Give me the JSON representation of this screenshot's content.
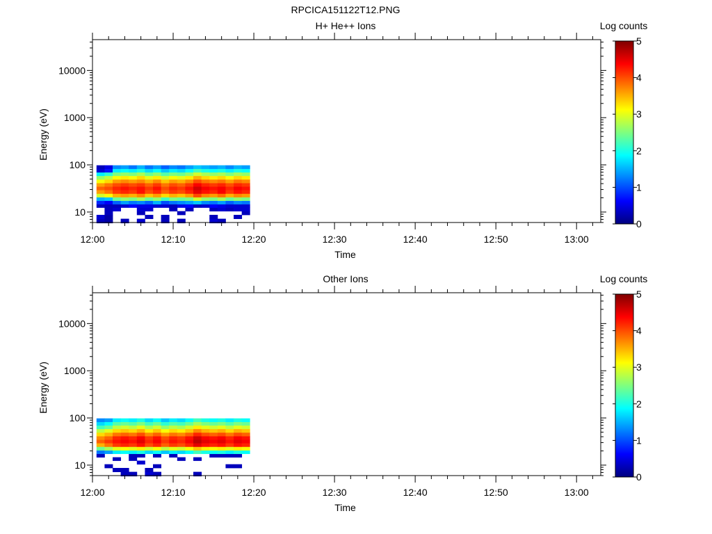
{
  "title": "RPCICA151122T12.PNG",
  "colors": {
    "colormap": [
      "#00007f",
      "#0000ff",
      "#007fff",
      "#00ffff",
      "#7fff7f",
      "#ffff00",
      "#ff7f00",
      "#ff0000",
      "#7f0000"
    ]
  },
  "chart_data": [
    {
      "type": "heatmap",
      "title": "H+ He++ Ions",
      "xlabel": "Time",
      "ylabel": "Energy (eV)",
      "yscale": "log",
      "xlim": [
        "12:00",
        "13:03"
      ],
      "ylim": [
        6,
        45000
      ],
      "x_ticks": [
        "12:00",
        "12:10",
        "12:20",
        "12:30",
        "12:40",
        "12:50",
        "13:00"
      ],
      "y_ticks": [
        "10",
        "100",
        "1000",
        "10000"
      ],
      "colorbar": {
        "label": "Log counts",
        "range": [
          0,
          5
        ],
        "ticks": [
          "0",
          "1",
          "2",
          "3",
          "4",
          "5"
        ]
      },
      "time_bins": [
        "12:01",
        "12:02",
        "12:03",
        "12:04",
        "12:05",
        "12:06",
        "12:07",
        "12:08",
        "12:09",
        "12:10",
        "12:11",
        "12:12",
        "12:13",
        "12:14",
        "12:15",
        "12:16",
        "12:17",
        "12:18",
        "12:19"
      ],
      "energy_bins": [
        6.5,
        8,
        9.5,
        11.5,
        13.5,
        16,
        19,
        22.5,
        27,
        32,
        38,
        45,
        54,
        64,
        76,
        90
      ],
      "values": [
        [
          0.3,
          0.2,
          null,
          0.3,
          null,
          0.4,
          null,
          null,
          0.3,
          null,
          0.3,
          null,
          null,
          null,
          0.4,
          0.3,
          null,
          null,
          null
        ],
        [
          0.4,
          0.2,
          null,
          null,
          null,
          null,
          0.3,
          null,
          0.3,
          null,
          null,
          null,
          null,
          null,
          0.3,
          null,
          null,
          0.3,
          null
        ],
        [
          null,
          0.3,
          null,
          null,
          null,
          0.3,
          null,
          null,
          null,
          null,
          0.3,
          null,
          null,
          null,
          null,
          null,
          null,
          null,
          0.3
        ],
        [
          null,
          0.3,
          0.4,
          null,
          null,
          0.4,
          0.4,
          null,
          null,
          0.3,
          null,
          0.3,
          null,
          null,
          0.3,
          0.4,
          0.3,
          0.4,
          0.4
        ],
        [
          0.3,
          0.3,
          0.3,
          0.4,
          0.6,
          0.5,
          0.5,
          0.4,
          0.4,
          0.3,
          0.5,
          0.6,
          0.3,
          0.4,
          0.6,
          0.5,
          0.4,
          0.4,
          0.4
        ],
        [
          0.8,
          0.6,
          1.1,
          1.4,
          1.2,
          1.3,
          1.1,
          1.5,
          1.0,
          1.2,
          1.3,
          1.4,
          1.6,
          1.3,
          1.2,
          1.4,
          1.1,
          1.3,
          1.2
        ],
        [
          1.5,
          1.6,
          2.4,
          2.6,
          2.5,
          2.7,
          2.4,
          2.6,
          2.2,
          2.5,
          2.4,
          2.5,
          2.9,
          2.6,
          2.5,
          2.7,
          2.4,
          2.6,
          2.5
        ],
        [
          2.9,
          3.1,
          3.5,
          3.6,
          3.5,
          3.7,
          3.4,
          3.6,
          3.3,
          3.5,
          3.4,
          3.6,
          4.0,
          3.7,
          3.6,
          3.8,
          3.5,
          3.7,
          3.6
        ],
        [
          3.6,
          3.8,
          4.1,
          4.2,
          4.1,
          4.3,
          4.0,
          4.2,
          3.9,
          4.1,
          4.0,
          4.2,
          4.5,
          4.3,
          4.2,
          4.4,
          4.1,
          4.3,
          4.2
        ],
        [
          3.9,
          4.0,
          4.2,
          4.3,
          4.2,
          4.3,
          4.1,
          4.3,
          4.0,
          4.2,
          4.1,
          4.3,
          4.6,
          4.4,
          4.3,
          4.4,
          4.2,
          4.4,
          4.3
        ],
        [
          3.6,
          3.8,
          4.0,
          4.1,
          4.0,
          4.1,
          3.9,
          4.1,
          3.8,
          4.0,
          3.9,
          4.1,
          4.4,
          4.2,
          4.1,
          4.2,
          4.0,
          4.2,
          4.1
        ],
        [
          3.1,
          3.3,
          3.6,
          3.7,
          3.6,
          3.7,
          3.5,
          3.7,
          3.4,
          3.6,
          3.5,
          3.7,
          4.0,
          3.8,
          3.7,
          3.8,
          3.6,
          3.8,
          3.7
        ],
        [
          2.6,
          2.8,
          3.1,
          3.2,
          3.1,
          3.3,
          3.0,
          3.2,
          2.9,
          3.1,
          3.0,
          3.2,
          3.5,
          3.3,
          3.2,
          3.3,
          3.1,
          3.3,
          3.2
        ],
        [
          1.8,
          2.1,
          2.5,
          2.6,
          2.5,
          2.7,
          2.4,
          2.6,
          2.3,
          2.5,
          2.4,
          2.6,
          2.9,
          2.7,
          2.6,
          2.7,
          2.5,
          2.7,
          2.6
        ],
        [
          0.4,
          0.7,
          1.8,
          1.9,
          1.8,
          2.0,
          1.7,
          1.9,
          1.6,
          1.8,
          1.7,
          1.9,
          2.2,
          2.0,
          1.9,
          2.0,
          1.8,
          2.0,
          1.9
        ],
        [
          0.3,
          0.5,
          1.3,
          1.4,
          1.2,
          1.5,
          1.2,
          1.4,
          1.1,
          1.3,
          1.2,
          1.4,
          1.6,
          1.5,
          1.4,
          1.5,
          1.3,
          1.5,
          1.4
        ]
      ]
    },
    {
      "type": "heatmap",
      "title": "Other Ions",
      "xlabel": "Time",
      "ylabel": "Energy (eV)",
      "yscale": "log",
      "xlim": [
        "12:00",
        "13:03"
      ],
      "ylim": [
        6,
        45000
      ],
      "x_ticks": [
        "12:00",
        "12:10",
        "12:20",
        "12:30",
        "12:40",
        "12:50",
        "13:00"
      ],
      "y_ticks": [
        "10",
        "100",
        "1000",
        "10000"
      ],
      "colorbar": {
        "label": "Log counts",
        "range": [
          0,
          5
        ],
        "ticks": [
          "0",
          "1",
          "2",
          "3",
          "4",
          "5"
        ]
      },
      "time_bins": [
        "12:01",
        "12:02",
        "12:03",
        "12:04",
        "12:05",
        "12:06",
        "12:07",
        "12:08",
        "12:09",
        "12:10",
        "12:11",
        "12:12",
        "12:13",
        "12:14",
        "12:15",
        "12:16",
        "12:17",
        "12:18",
        "12:19"
      ],
      "energy_bins": [
        6.5,
        8,
        9.5,
        11.5,
        13.5,
        16,
        19,
        22.5,
        27,
        32,
        38,
        45,
        54,
        64,
        76,
        90
      ],
      "values": [
        [
          null,
          null,
          null,
          0.3,
          0.3,
          null,
          0.4,
          0.3,
          null,
          null,
          null,
          null,
          0.3,
          null,
          null,
          null,
          null,
          null,
          null
        ],
        [
          null,
          null,
          0.3,
          0.3,
          null,
          null,
          0.3,
          null,
          null,
          null,
          null,
          null,
          null,
          null,
          null,
          null,
          null,
          null,
          null
        ],
        [
          null,
          0.3,
          null,
          null,
          null,
          null,
          null,
          0.3,
          null,
          null,
          null,
          null,
          null,
          null,
          null,
          null,
          0.3,
          0.3,
          null
        ],
        [
          null,
          null,
          null,
          null,
          null,
          0.4,
          null,
          null,
          null,
          null,
          null,
          null,
          null,
          null,
          null,
          null,
          null,
          null,
          null
        ],
        [
          null,
          null,
          0.3,
          null,
          0.3,
          null,
          null,
          null,
          null,
          null,
          0.3,
          null,
          0.3,
          null,
          null,
          null,
          null,
          null,
          null
        ],
        [
          0.3,
          null,
          null,
          null,
          0.3,
          0.3,
          null,
          0.3,
          null,
          0.3,
          null,
          null,
          null,
          null,
          0.3,
          0.3,
          0.3,
          0.3,
          null
        ],
        [
          1.2,
          1.4,
          1.8,
          1.9,
          1.8,
          2.0,
          1.7,
          1.9,
          1.6,
          1.8,
          1.7,
          1.9,
          2.2,
          2.0,
          1.9,
          2.0,
          1.8,
          2.0,
          1.9
        ],
        [
          2.4,
          2.7,
          3.0,
          3.1,
          3.0,
          3.2,
          2.9,
          3.1,
          2.8,
          3.0,
          2.9,
          3.1,
          3.4,
          3.2,
          3.1,
          3.2,
          3.0,
          3.2,
          3.1
        ],
        [
          3.5,
          3.8,
          4.1,
          4.2,
          4.1,
          4.3,
          4.0,
          4.2,
          3.9,
          4.1,
          4.0,
          4.2,
          4.5,
          4.3,
          4.2,
          4.3,
          4.1,
          4.3,
          4.2
        ],
        [
          3.9,
          4.1,
          4.3,
          4.4,
          4.3,
          4.5,
          4.2,
          4.4,
          4.1,
          4.3,
          4.2,
          4.4,
          4.7,
          4.5,
          4.4,
          4.5,
          4.3,
          4.5,
          4.4
        ],
        [
          3.7,
          3.9,
          4.2,
          4.3,
          4.2,
          4.4,
          4.1,
          4.3,
          4.0,
          4.2,
          4.1,
          4.3,
          4.6,
          4.4,
          4.3,
          4.4,
          4.2,
          4.4,
          4.3
        ],
        [
          3.3,
          3.5,
          3.8,
          3.9,
          3.8,
          4.0,
          3.7,
          3.9,
          3.6,
          3.8,
          3.7,
          3.9,
          4.2,
          4.0,
          3.9,
          4.0,
          3.8,
          4.0,
          3.9
        ],
        [
          2.8,
          3.0,
          3.3,
          3.4,
          3.3,
          3.5,
          3.2,
          3.4,
          3.1,
          3.3,
          3.2,
          3.4,
          3.7,
          3.5,
          3.4,
          3.5,
          3.3,
          3.5,
          3.4
        ],
        [
          2.2,
          2.4,
          2.8,
          2.9,
          2.8,
          3.0,
          2.7,
          2.9,
          2.6,
          2.8,
          2.7,
          2.9,
          3.2,
          3.0,
          2.9,
          3.0,
          2.8,
          3.0,
          2.9
        ],
        [
          1.7,
          1.9,
          2.3,
          2.4,
          2.3,
          2.5,
          2.2,
          2.4,
          2.1,
          2.3,
          2.2,
          2.4,
          2.7,
          2.5,
          2.4,
          2.5,
          2.3,
          2.5,
          2.4
        ],
        [
          1.3,
          1.4,
          1.8,
          1.9,
          1.8,
          2.0,
          1.7,
          1.9,
          1.6,
          1.8,
          1.7,
          1.9,
          2.2,
          2.0,
          1.9,
          2.0,
          1.8,
          2.0,
          1.9
        ]
      ]
    }
  ]
}
